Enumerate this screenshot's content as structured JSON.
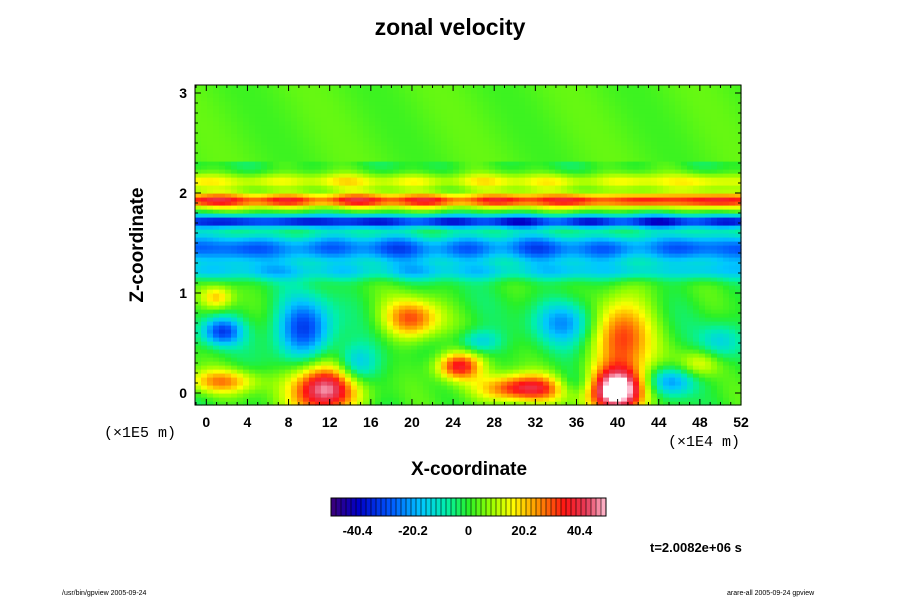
{
  "chart_data": {
    "type": "heatmap",
    "title": "zonal velocity",
    "xlabel": "X-coordinate",
    "ylabel": "Z-coordinate",
    "x_ticks": [
      0,
      4,
      8,
      12,
      16,
      20,
      24,
      28,
      32,
      36,
      40,
      44,
      48,
      52
    ],
    "y_ticks": [
      0,
      1,
      2,
      3
    ],
    "xlim": [
      -1.1,
      52
    ],
    "ylim": [
      -0.12,
      3.08
    ],
    "x_scale_label": "(×1E4 m)",
    "y_scale_label": "(×1E5 m)",
    "colorbar": {
      "range": [
        -50,
        50
      ],
      "ticks": [
        -40.4,
        -20.2,
        0,
        20.2,
        40.4
      ],
      "tick_labels": [
        "-40.4",
        "-20.2",
        "0",
        "20.2",
        "40.4"
      ]
    },
    "time_label": "t=2.0082e+06 s",
    "features": [
      {
        "shape": "band",
        "z": 1.93,
        "width": 0.07,
        "value": 34,
        "description": "strong eastward jet band"
      },
      {
        "shape": "band",
        "z": 1.72,
        "width": 0.06,
        "value": -36
      },
      {
        "shape": "band",
        "z": 1.45,
        "width": 0.14,
        "value": -26
      },
      {
        "shape": "band",
        "z": 2.12,
        "width": 0.08,
        "value": 15
      },
      {
        "shape": "band",
        "z": 1.22,
        "width": 0.09,
        "value": -14
      },
      {
        "shape": "blob",
        "x": 11.5,
        "z": 0.04,
        "rx": 3.2,
        "rz": 0.25,
        "value": 52
      },
      {
        "shape": "blob",
        "x": 40,
        "z": 0.03,
        "rx": 3.0,
        "rz": 0.22,
        "value": 55
      },
      {
        "shape": "blob",
        "x": 31,
        "z": 0.05,
        "rx": 4.5,
        "rz": 0.14,
        "value": 40
      },
      {
        "shape": "blob",
        "x": 40.5,
        "z": 0.55,
        "rx": 2.8,
        "rz": 0.45,
        "value": 32
      },
      {
        "shape": "blob",
        "x": 20,
        "z": 0.75,
        "rx": 2.8,
        "rz": 0.2,
        "value": 30
      },
      {
        "shape": "blob",
        "x": 24.5,
        "z": 0.27,
        "rx": 2.2,
        "rz": 0.14,
        "value": 38
      },
      {
        "shape": "blob",
        "x": 1.5,
        "z": 0.12,
        "rx": 3.5,
        "rz": 0.12,
        "value": 24
      },
      {
        "shape": "blob",
        "x": 1.5,
        "z": 0.62,
        "rx": 2.0,
        "rz": 0.14,
        "value": -30
      },
      {
        "shape": "blob",
        "x": 9.5,
        "z": 0.65,
        "rx": 2.8,
        "rz": 0.3,
        "value": -32
      },
      {
        "shape": "blob",
        "x": 14.5,
        "z": 0.28,
        "rx": 2.0,
        "rz": 0.2,
        "value": -22
      },
      {
        "shape": "blob",
        "x": 35,
        "z": 0.72,
        "rx": 3.0,
        "rz": 0.22,
        "value": -22
      },
      {
        "shape": "blob",
        "x": 36,
        "z": 0.08,
        "rx": 2.2,
        "rz": 0.14,
        "value": -18
      },
      {
        "shape": "blob",
        "x": 45,
        "z": 0.12,
        "rx": 2.5,
        "rz": 0.15,
        "value": -26
      },
      {
        "shape": "blob",
        "x": 50,
        "z": 0.52,
        "rx": 2.0,
        "rz": 0.18,
        "value": -14
      },
      {
        "shape": "blob",
        "x": 26.5,
        "z": 0.52,
        "rx": 2.0,
        "rz": 0.12,
        "value": -16
      },
      {
        "shape": "blob",
        "x": 48,
        "z": 0.3,
        "rx": 2.0,
        "rz": 0.14,
        "value": 16
      },
      {
        "shape": "blob",
        "x": 1.0,
        "z": 0.96,
        "rx": 1.6,
        "rz": 0.12,
        "value": 20
      }
    ]
  },
  "footer": {
    "left": "/usr/bin/gpview 2005-09-24",
    "right": "arare-all 2005-09-24 gpview"
  }
}
